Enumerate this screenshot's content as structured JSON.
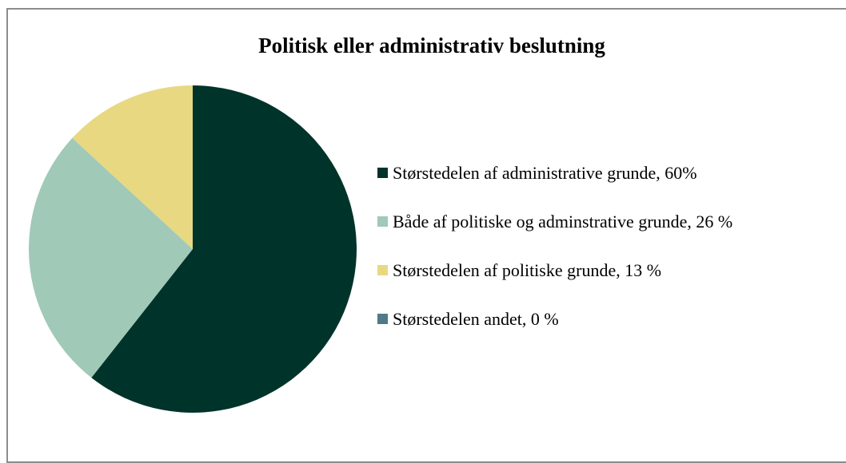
{
  "chart_data": {
    "type": "pie",
    "title": "Politisk eller administrativ beslutning",
    "categories": [
      "Størstedelen af administrative grunde, 60%",
      "Både af politiske og adminstrative grunde, 26 %",
      "Størstedelen af politiske grunde, 13 %",
      "Størstedelen andet, 0 %"
    ],
    "values": [
      60,
      26,
      13,
      0
    ],
    "colors": [
      "#00332a",
      "#a0c9b8",
      "#e8d882",
      "#4f7a87"
    ],
    "legend_position": "right",
    "start_angle": "12 o'clock",
    "direction": "clockwise"
  }
}
